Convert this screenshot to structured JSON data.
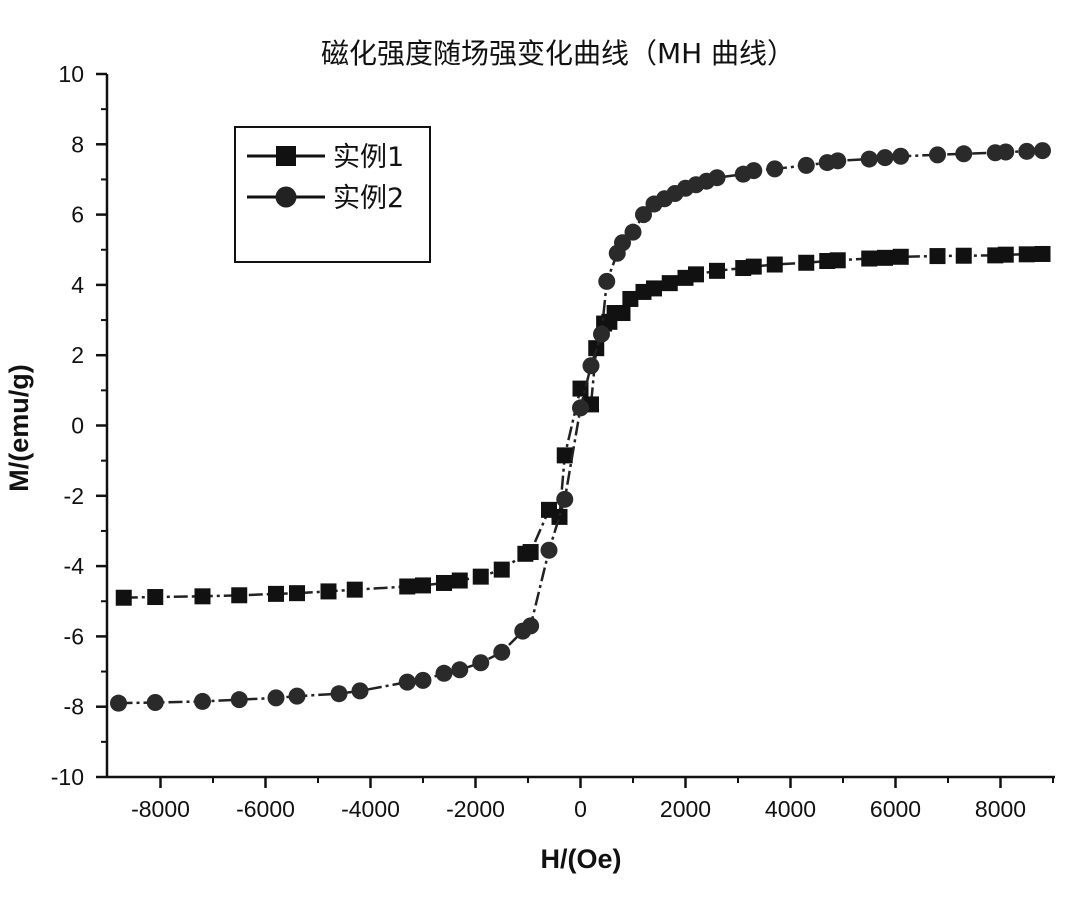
{
  "chart_data": {
    "type": "line",
    "title": "磁化强度随场强变化曲线（MH 曲线）",
    "xlabel": "H/(Oe)",
    "ylabel": "M/(emu/g)",
    "xlim": [
      -9000,
      9000
    ],
    "ylim": [
      -10,
      10
    ],
    "x_ticks": [
      -8000,
      -6000,
      -4000,
      -2000,
      0,
      2000,
      4000,
      6000,
      8000
    ],
    "y_ticks": [
      -10,
      -8,
      -6,
      -4,
      -2,
      0,
      2,
      4,
      6,
      8,
      10
    ],
    "grid": false,
    "legend_position": "top-left",
    "series": [
      {
        "name": "实例1",
        "marker": "square",
        "x": [
          -8700,
          -8100,
          -7200,
          -6500,
          -5800,
          -5400,
          -4800,
          -4300,
          -3300,
          -3000,
          -2600,
          -2300,
          -1900,
          -1500,
          -1050,
          -950,
          -600,
          -400,
          -300,
          0,
          200,
          300,
          450,
          550,
          650,
          800,
          950,
          1200,
          1400,
          1700,
          2000,
          2200,
          2600,
          3100,
          3300,
          3700,
          4300,
          4700,
          4900,
          5500,
          5800,
          6100,
          6800,
          7300,
          7900,
          8100,
          8500,
          8800
        ],
        "y": [
          -4.9,
          -4.88,
          -4.86,
          -4.83,
          -4.79,
          -4.77,
          -4.72,
          -4.67,
          -4.58,
          -4.55,
          -4.48,
          -4.41,
          -4.3,
          -4.1,
          -3.65,
          -3.6,
          -2.4,
          -2.6,
          -0.85,
          1.05,
          0.6,
          2.2,
          2.9,
          2.95,
          3.2,
          3.2,
          3.6,
          3.8,
          3.9,
          4.05,
          4.2,
          4.3,
          4.4,
          4.48,
          4.52,
          4.58,
          4.63,
          4.68,
          4.7,
          4.75,
          4.77,
          4.8,
          4.82,
          4.83,
          4.84,
          4.86,
          4.87,
          4.88
        ]
      },
      {
        "name": "实例2",
        "marker": "circle",
        "x": [
          -8800,
          -8100,
          -7200,
          -6500,
          -5800,
          -5400,
          -4600,
          -4200,
          -3300,
          -3000,
          -2600,
          -2300,
          -1900,
          -1500,
          -1100,
          -950,
          -600,
          -300,
          0,
          200,
          400,
          500,
          700,
          800,
          1000,
          1200,
          1400,
          1600,
          1800,
          2000,
          2200,
          2400,
          2600,
          3100,
          3300,
          3700,
          4300,
          4700,
          4900,
          5500,
          5800,
          6100,
          6800,
          7300,
          7900,
          8100,
          8500,
          8800
        ],
        "y": [
          -7.9,
          -7.88,
          -7.85,
          -7.8,
          -7.75,
          -7.7,
          -7.63,
          -7.55,
          -7.3,
          -7.25,
          -7.05,
          -6.95,
          -6.75,
          -6.45,
          -5.85,
          -5.7,
          -3.55,
          -2.1,
          0.5,
          1.7,
          2.6,
          4.1,
          4.9,
          5.2,
          5.5,
          6.0,
          6.3,
          6.45,
          6.6,
          6.75,
          6.85,
          6.95,
          7.05,
          7.15,
          7.25,
          7.3,
          7.4,
          7.48,
          7.53,
          7.58,
          7.62,
          7.66,
          7.7,
          7.73,
          7.76,
          7.78,
          7.8,
          7.82
        ]
      }
    ]
  }
}
